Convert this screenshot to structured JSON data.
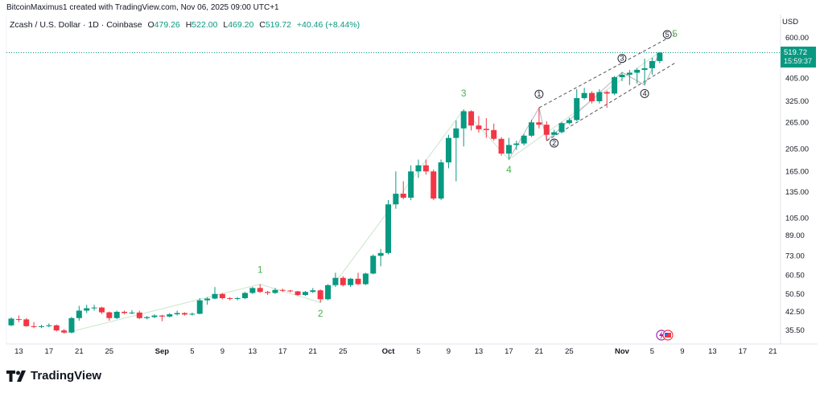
{
  "credit": "BitcoinMaximus1 created with TradingView.com, Nov 06, 2025 09:00 UTC+1",
  "legend": {
    "symbol": "Zcash / U.S. Dollar · 1D · Coinbase",
    "o_label": "O",
    "o": "479.26",
    "h_label": "H",
    "h": "522.00",
    "l_label": "L",
    "l": "469.20",
    "c_label": "C",
    "c": "519.72",
    "change": "+40.46 (+8.44%)"
  },
  "price_axis": {
    "currency": "USD",
    "current_price": "519.72",
    "countdown": "15:59:37"
  },
  "brand": {
    "name": "TradingView"
  },
  "colors": {
    "up": "#089981",
    "down": "#f23645",
    "wave": "#4caf50",
    "price_line": "#089981"
  },
  "chart_data": {
    "type": "candlestick",
    "scale": "log",
    "ylim": [
      33,
      640
    ],
    "y_ticks": [
      "600.00",
      "405.00",
      "325.00",
      "265.00",
      "205.00",
      "165.00",
      "135.00",
      "105.00",
      "89.00",
      "73.00",
      "60.50",
      "50.50",
      "42.50",
      "35.50"
    ],
    "x_ticks": [
      {
        "label": "13",
        "date": "2025-08-13"
      },
      {
        "label": "17",
        "date": "2025-08-17"
      },
      {
        "label": "21",
        "date": "2025-08-21"
      },
      {
        "label": "25",
        "date": "2025-08-25"
      },
      {
        "label": "Sep",
        "date": "2025-09-01",
        "bold": true
      },
      {
        "label": "5",
        "date": "2025-09-05"
      },
      {
        "label": "9",
        "date": "2025-09-09"
      },
      {
        "label": "13",
        "date": "2025-09-13"
      },
      {
        "label": "17",
        "date": "2025-09-17"
      },
      {
        "label": "21",
        "date": "2025-09-21"
      },
      {
        "label": "25",
        "date": "2025-09-25"
      },
      {
        "label": "Oct",
        "date": "2025-10-01",
        "bold": true
      },
      {
        "label": "5",
        "date": "2025-10-05"
      },
      {
        "label": "9",
        "date": "2025-10-09"
      },
      {
        "label": "13",
        "date": "2025-10-13"
      },
      {
        "label": "17",
        "date": "2025-10-17"
      },
      {
        "label": "21",
        "date": "2025-10-21"
      },
      {
        "label": "25",
        "date": "2025-10-25"
      },
      {
        "label": "Nov",
        "date": "2025-11-01",
        "bold": true
      },
      {
        "label": "5",
        "date": "2025-11-05"
      },
      {
        "label": "9",
        "date": "2025-11-09"
      },
      {
        "label": "13",
        "date": "2025-11-13"
      },
      {
        "label": "17",
        "date": "2025-11-17"
      },
      {
        "label": "21",
        "date": "2025-11-21"
      }
    ],
    "start_date": "2025-08-12",
    "ohlc": [
      [
        37.3,
        40.3,
        37,
        39.8
      ],
      [
        39.6,
        41,
        38.5,
        39.3
      ],
      [
        39.5,
        40,
        36.8,
        37
      ],
      [
        37,
        38.5,
        36.3,
        36.7
      ],
      [
        36.7,
        37.5,
        36.3,
        37
      ],
      [
        37,
        38,
        36.6,
        37.3
      ],
      [
        37.3,
        37.6,
        35.2,
        35.5
      ],
      [
        35.5,
        36,
        34.5,
        34.8
      ],
      [
        34.8,
        40.5,
        34.5,
        40
      ],
      [
        40,
        45,
        39,
        43
      ],
      [
        43,
        45.5,
        42,
        44
      ],
      [
        44,
        45.5,
        43,
        44.3
      ],
      [
        44.3,
        44.6,
        41.6,
        42.3
      ],
      [
        42.3,
        42.6,
        39,
        40
      ],
      [
        40,
        43,
        39.6,
        42.5
      ],
      [
        42.5,
        43,
        41.5,
        42
      ],
      [
        42,
        43.2,
        41.5,
        42.2
      ],
      [
        42.2,
        43,
        39.6,
        40
      ],
      [
        40,
        40.8,
        39.5,
        40.4
      ],
      [
        40.4,
        41.5,
        40,
        41
      ],
      [
        41,
        41.3,
        38.8,
        40.6
      ],
      [
        40.6,
        42,
        40.3,
        41.5
      ],
      [
        41.5,
        43,
        41,
        42
      ],
      [
        42,
        42.3,
        41,
        41.4
      ],
      [
        41.4,
        42.2,
        41,
        41.7
      ],
      [
        41.7,
        48.5,
        41.5,
        47.5
      ],
      [
        47.5,
        49,
        45.5,
        48.3
      ],
      [
        48.3,
        54,
        48,
        50.5
      ],
      [
        50.5,
        51,
        48,
        48.5
      ],
      [
        48.5,
        49,
        47.5,
        48.2
      ],
      [
        48.2,
        49,
        47.5,
        48.5
      ],
      [
        48.5,
        51.5,
        48,
        51
      ],
      [
        51,
        54,
        50.5,
        53.5
      ],
      [
        53.5,
        55.5,
        51,
        51.5
      ],
      [
        51.5,
        52,
        50,
        51
      ],
      [
        51,
        53.5,
        50.5,
        52.5
      ],
      [
        52.5,
        53.2,
        51.5,
        52.2
      ],
      [
        52.2,
        52.5,
        51.3,
        51.8
      ],
      [
        51.8,
        52,
        49.5,
        50
      ],
      [
        50,
        52,
        49.5,
        51.5
      ],
      [
        51.5,
        53.5,
        51,
        52.3
      ],
      [
        52.3,
        52.8,
        46.5,
        48
      ],
      [
        48,
        55.5,
        47.5,
        55
      ],
      [
        55,
        62,
        54,
        59
      ],
      [
        59,
        60,
        54.3,
        55
      ],
      [
        55,
        59,
        54,
        58.5
      ],
      [
        58.5,
        62,
        55,
        55.5
      ],
      [
        55.5,
        62,
        55,
        61.5
      ],
      [
        61.5,
        74,
        61,
        73
      ],
      [
        73,
        78,
        66,
        75
      ],
      [
        75,
        125,
        74,
        120
      ],
      [
        120,
        165,
        115,
        133
      ],
      [
        133,
        150,
        126,
        128
      ],
      [
        128,
        175,
        125,
        165
      ],
      [
        165,
        185,
        155,
        175
      ],
      [
        175,
        185,
        160,
        165
      ],
      [
        165,
        168,
        125,
        127
      ],
      [
        127,
        185,
        125,
        180
      ],
      [
        180,
        235,
        170,
        228
      ],
      [
        228,
        270,
        150,
        250
      ],
      [
        250,
        300,
        210,
        295
      ],
      [
        295,
        298,
        245,
        257
      ],
      [
        257,
        282,
        240,
        248
      ],
      [
        249,
        276,
        228,
        246
      ],
      [
        246,
        262,
        222,
        226
      ],
      [
        226,
        230,
        192,
        196
      ],
      [
        196,
        228,
        185,
        213
      ],
      [
        213,
        222,
        203,
        216
      ],
      [
        216,
        236,
        212,
        233
      ],
      [
        233,
        272,
        230,
        265
      ],
      [
        265,
        305,
        250,
        259
      ],
      [
        259,
        268,
        222,
        235
      ],
      [
        235,
        247,
        233,
        241
      ],
      [
        241,
        266,
        238,
        263
      ],
      [
        263,
        277,
        260,
        271
      ],
      [
        271,
        365,
        268,
        335
      ],
      [
        335,
        370,
        330,
        352
      ],
      [
        352,
        358,
        318,
        325
      ],
      [
        325,
        365,
        318,
        355
      ],
      [
        355,
        360,
        305,
        350
      ],
      [
        350,
        415,
        345,
        410
      ],
      [
        410,
        430,
        395,
        420
      ],
      [
        420,
        440,
        380,
        428
      ],
      [
        428,
        448,
        385,
        440
      ],
      [
        440,
        490,
        380,
        447
      ],
      [
        447,
        495,
        420,
        479
      ],
      [
        479.26,
        522,
        469.2,
        519.72
      ]
    ],
    "wave_path": [
      [
        "2025-08-19",
        34.5
      ],
      [
        "2025-09-14",
        55.5
      ],
      [
        "2025-09-22",
        46.5
      ],
      [
        "2025-10-11",
        300
      ],
      [
        "2025-10-17",
        185
      ],
      [
        "2025-11-06",
        522
      ]
    ],
    "subwave_path": [
      [
        "2025-10-17",
        185
      ],
      [
        "2025-10-21",
        305
      ],
      [
        "2025-10-22",
        222
      ],
      [
        "2025-11-01",
        430
      ],
      [
        "2025-11-04",
        380
      ],
      [
        "2025-11-06",
        522
      ]
    ],
    "channel_upper": [
      [
        "2025-10-21",
        305
      ],
      [
        "2025-11-08",
        620
      ]
    ],
    "channel_lower": [
      [
        "2025-10-22",
        222
      ],
      [
        "2025-11-08",
        470
      ]
    ],
    "wave_labels": [
      {
        "text": "1",
        "date": "2025-09-14",
        "price": 62
      },
      {
        "text": "2",
        "date": "2025-09-22",
        "price": 40.5
      },
      {
        "text": "3",
        "date": "2025-10-11",
        "price": 340
      },
      {
        "text": "4",
        "date": "2025-10-17",
        "price": 163
      },
      {
        "text": "5",
        "date": "2025-11-08",
        "price": 605
      }
    ],
    "subwave_labels": [
      {
        "text": "1",
        "date": "2025-10-21",
        "price": 340
      },
      {
        "text": "2",
        "date": "2025-10-23",
        "price": 212
      },
      {
        "text": "3",
        "date": "2025-11-01",
        "price": 480
      },
      {
        "text": "4",
        "date": "2025-11-04",
        "price": 342
      },
      {
        "text": "5",
        "date": "2025-11-07",
        "price": 605
      }
    ]
  }
}
